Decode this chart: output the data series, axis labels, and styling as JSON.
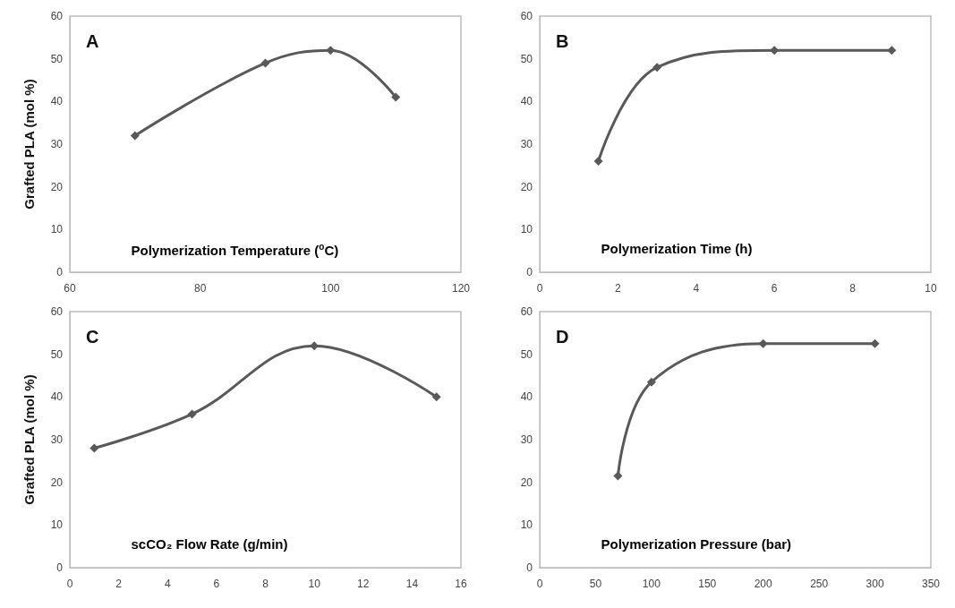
{
  "chart_data": [
    {
      "type": "line",
      "xlabel": "Polymerization Temperature ($^{o}$C)",
      "ylabel": "Grafted PLA (mol %)",
      "annotations": [
        "A"
      ],
      "x": [
        70,
        90,
        100,
        110
      ],
      "series": [
        {
          "color": "#595959",
          "values": [
            32,
            49,
            52,
            41
          ]
        }
      ],
      "xlim": [
        60,
        120
      ],
      "xticks": [
        60,
        80,
        100,
        120
      ],
      "ylim": [
        0,
        60
      ],
      "yticks": [
        0,
        10,
        20,
        30,
        40,
        50,
        60
      ],
      "marker": "diamond",
      "line_style": "solid"
    },
    {
      "type": "line",
      "xlabel": "Polymerization Time (h)",
      "annotations": [
        "B"
      ],
      "x": [
        1.5,
        3,
        6,
        9
      ],
      "series": [
        {
          "color": "#595959",
          "values": [
            26,
            48,
            52,
            52
          ]
        }
      ],
      "xlim": [
        0,
        10
      ],
      "xticks": [
        0,
        2,
        4,
        6,
        8,
        10
      ],
      "ylim": [
        0,
        60
      ],
      "yticks": [
        0,
        10,
        20,
        30,
        40,
        50,
        60
      ],
      "marker": "diamond",
      "line_style": "solid"
    },
    {
      "type": "line",
      "xlabel": "scCO₂ Flow Rate (g/min)",
      "ylabel": "Grafted PLA (mol %)",
      "annotations": [
        "C"
      ],
      "x": [
        1,
        5,
        10,
        15
      ],
      "series": [
        {
          "color": "#595959",
          "values": [
            28,
            36,
            52,
            40
          ]
        }
      ],
      "xlim": [
        0,
        16
      ],
      "xticks": [
        0,
        2,
        4,
        6,
        8,
        10,
        12,
        14,
        16
      ],
      "ylim": [
        0,
        60
      ],
      "yticks": [
        0,
        10,
        20,
        30,
        40,
        50,
        60
      ],
      "marker": "diamond",
      "line_style": "solid"
    },
    {
      "type": "line",
      "xlabel": "Polymerization Pressure (bar)",
      "annotations": [
        "D"
      ],
      "x": [
        70,
        100,
        200,
        300
      ],
      "series": [
        {
          "color": "#595959",
          "values": [
            21.5,
            43.5,
            52.5,
            52.5
          ]
        }
      ],
      "xlim": [
        0,
        350
      ],
      "xticks": [
        0,
        50,
        100,
        150,
        200,
        250,
        300,
        350
      ],
      "ylim": [
        0,
        60
      ],
      "yticks": [
        0,
        10,
        20,
        30,
        40,
        50,
        60
      ],
      "marker": "diamond",
      "line_style": "solid"
    }
  ]
}
